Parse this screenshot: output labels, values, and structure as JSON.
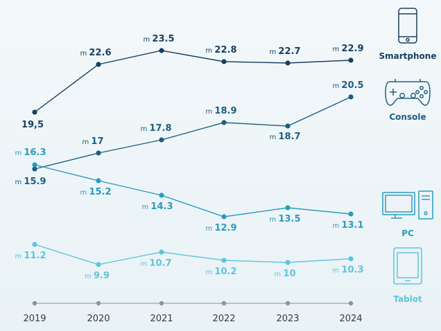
{
  "chart_data": {
    "type": "line",
    "title": "",
    "xlabel": "",
    "ylabel": "",
    "x": [
      "2019",
      "2020",
      "2021",
      "2022",
      "2023",
      "2024"
    ],
    "ylim": [
      8,
      25
    ],
    "grid": false,
    "legend_position": "right",
    "series": [
      {
        "name": "Smartphone",
        "values": [
          19.5,
          22.6,
          23.5,
          22.8,
          22.7,
          22.9
        ],
        "labels": [
          "19,5",
          "22.6",
          "23.5",
          "22.8",
          "22.7",
          "22.9"
        ],
        "prefix": [
          "",
          "m",
          "m",
          "m",
          "m",
          "m"
        ],
        "color": "#173f5f",
        "icon": "smartphone-icon"
      },
      {
        "name": "Console",
        "values": [
          15.9,
          17,
          17.8,
          18.9,
          18.7,
          20.5
        ],
        "labels": [
          "15.9",
          "17",
          "17.8",
          "18.9",
          "18.7",
          "20.5"
        ],
        "prefix": [
          "m",
          "m",
          "m",
          "m",
          "m",
          "m"
        ],
        "color": "#1f5e80",
        "icon": "gamepad-icon"
      },
      {
        "name": "PC",
        "values": [
          16.3,
          15.2,
          14.3,
          12.9,
          13.5,
          13.1
        ],
        "labels": [
          "16.3",
          "15.2",
          "14.3",
          "12.9",
          "13.5",
          "13.1"
        ],
        "prefix": [
          "m",
          "m",
          "m",
          "m",
          "m",
          "m"
        ],
        "color": "#2a9bbd",
        "icon": "desktop-computer-icon"
      },
      {
        "name": "Tablot",
        "values": [
          11.2,
          9.9,
          10.7,
          10.2,
          10,
          10.3
        ],
        "labels": [
          "11.2",
          "9.9",
          "10.7",
          "10.2",
          "10",
          "10.3"
        ],
        "prefix": [
          "m",
          "m",
          "m",
          "m",
          "m",
          "m"
        ],
        "color": "#5cc6dc",
        "icon": "tablet-icon"
      }
    ]
  }
}
